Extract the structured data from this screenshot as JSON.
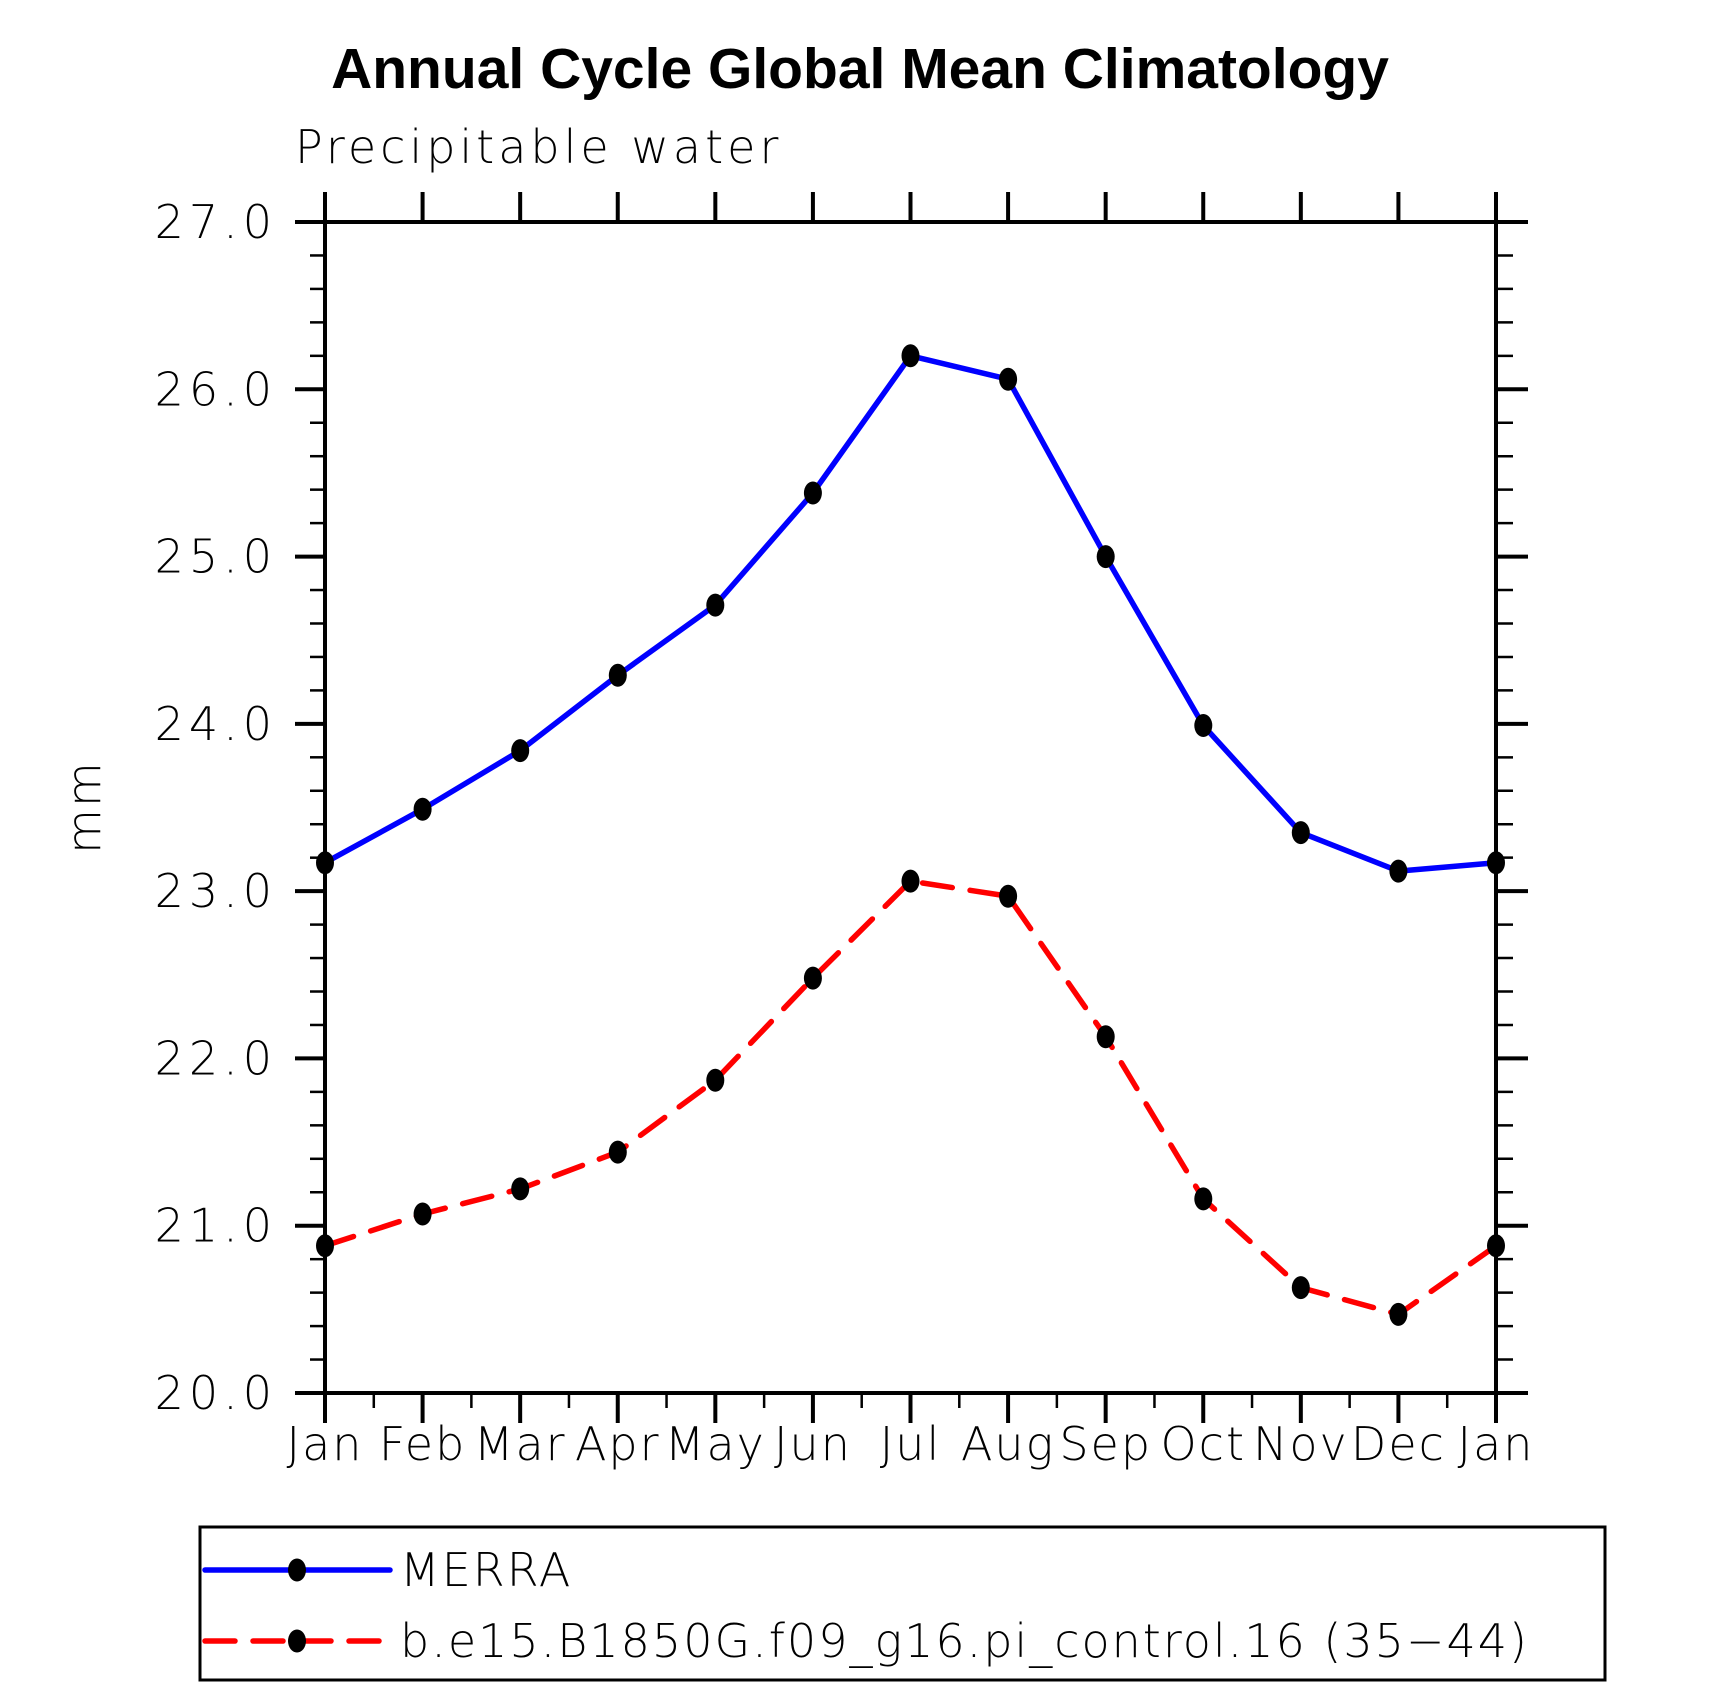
{
  "page": {
    "background": "#ffffff",
    "text_color": "#000000"
  },
  "chart_data": {
    "type": "line",
    "title": "Annual Cycle Global Mean Climatology",
    "subtitle": "Precipitable water",
    "ylabel": "mm",
    "xlabel": "",
    "categories": [
      "Jan",
      "Feb",
      "Mar",
      "Apr",
      "May",
      "Jun",
      "Jul",
      "Aug",
      "Sep",
      "Oct",
      "Nov",
      "Dec",
      "Jan"
    ],
    "ylim": [
      20.0,
      27.0
    ],
    "y_major_tick_step": 1.0,
    "y_minor_tick_step": 0.2,
    "y_tick_labels": [
      "20.0",
      "21.0",
      "22.0",
      "23.0",
      "24.0",
      "25.0",
      "26.0",
      "27.0"
    ],
    "grid": false,
    "legend_position": "bottom-left",
    "axis_color": "#000000",
    "marker_shape": "filled-circle",
    "series": [
      {
        "name": "MERRA",
        "color": "#0000ff",
        "line_style": "solid",
        "marker": "filled-circle",
        "marker_color": "#000000",
        "values": [
          23.17,
          23.49,
          23.84,
          24.29,
          24.71,
          25.38,
          26.2,
          26.06,
          25.0,
          23.99,
          23.35,
          23.12,
          23.17
        ]
      },
      {
        "name": "b.e15.B1850G.f09_g16.pi_control.16 (35−44)",
        "color": "#ff0000",
        "line_style": "dashed",
        "marker": "filled-circle",
        "marker_color": "#000000",
        "values": [
          20.88,
          21.07,
          21.22,
          21.44,
          21.87,
          22.48,
          23.06,
          22.97,
          22.13,
          21.16,
          20.63,
          20.47,
          20.88
        ]
      }
    ]
  }
}
